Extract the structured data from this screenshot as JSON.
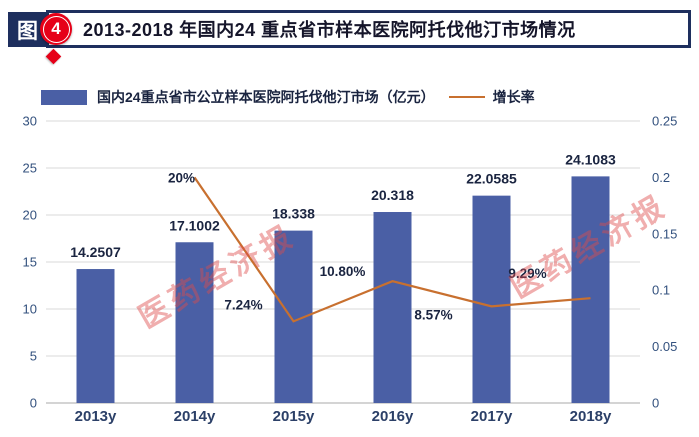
{
  "header": {
    "figure_label": "图",
    "figure_number": "4",
    "title": "2013-2018 年国内24 重点省市样本医院阿托伐他汀市场情况"
  },
  "legend": {
    "bar_label": "国内24重点省市公立样本医院阿托伐他汀市场（亿元）",
    "line_label": "增长率"
  },
  "watermark": {
    "text": "医药经济报"
  },
  "colors": {
    "navy": "#1e2f5e",
    "red": "#e60018",
    "bar": "#4a5fa5",
    "line": "#c8702f",
    "grid": "#d9d9d9",
    "axis-text": "#33517e",
    "value-text": "#1a2440",
    "watermark": "rgba(221,76,76,0.45)"
  },
  "chart_data": {
    "type": "bar",
    "subtype": "combo-bar-line",
    "title": "2013-2018 年国内24 重点省市样本医院阿托伐他汀市场情况",
    "categories": [
      "2013y",
      "2014y",
      "2015y",
      "2016y",
      "2017y",
      "2018y"
    ],
    "series": [
      {
        "name": "国内24重点省市公立样本医院阿托伐他汀市场（亿元）",
        "type": "bar",
        "axis": "left",
        "values": [
          14.2507,
          17.1002,
          18.338,
          20.318,
          22.0585,
          24.1083
        ],
        "labels": [
          "14.2507",
          "17.1002",
          "18.338",
          "20.318",
          "22.0585",
          "24.1083"
        ]
      },
      {
        "name": "增长率",
        "type": "line",
        "axis": "right",
        "values": [
          null,
          0.2,
          0.0724,
          0.108,
          0.0857,
          0.0929
        ],
        "labels": [
          null,
          "20%",
          "7.24%",
          "10.80%",
          "8.57%",
          "9.29%"
        ]
      }
    ],
    "left_axis": {
      "min": 0,
      "max": 30,
      "ticks": [
        "30",
        "25",
        "20",
        "15",
        "10",
        "5",
        "0"
      ],
      "tick_values": [
        30,
        25,
        20,
        15,
        10,
        5,
        0
      ]
    },
    "right_axis": {
      "min": 0,
      "max": 0.25,
      "ticks": [
        "0.25",
        "0.2",
        "0.15",
        "0.1",
        "0.05",
        "0"
      ],
      "tick_values": [
        0.25,
        0.2,
        0.15,
        0.1,
        0.05,
        0
      ]
    },
    "grid": true,
    "legend_position": "top"
  }
}
